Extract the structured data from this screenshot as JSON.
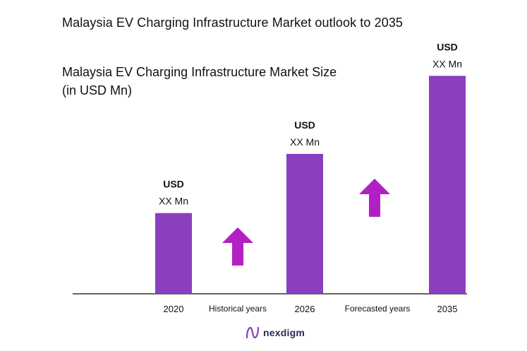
{
  "title": "Malaysia EV Charging Infrastructure Market outlook to 2035",
  "subtitle_line1": "Malaysia EV Charging Infrastructure Market Size",
  "subtitle_line2": "(in USD Mn)",
  "colors": {
    "bar": "#8a3fbe",
    "arrow": "#b21fc4",
    "axis": "#333333",
    "brand": "#2b2b55"
  },
  "chart_data": {
    "type": "bar",
    "title": "Malaysia EV Charging Infrastructure Market Size",
    "categories": [
      "2020",
      "2026",
      "2035"
    ],
    "values": [
      30,
      52,
      81
    ],
    "ylim": [
      0,
      100
    ],
    "xlabel": "",
    "ylabel": "",
    "data_labels": [
      {
        "unit": "USD",
        "value": "XX Mn"
      },
      {
        "unit": "USD",
        "value": "XX Mn"
      },
      {
        "unit": "USD",
        "value": "XX Mn"
      }
    ],
    "period_labels": [
      "Historical years",
      "Forecasted years"
    ],
    "growth_arrows": 2,
    "grid": false,
    "legend": "none"
  },
  "brand": {
    "name": "nexdigm",
    "icon": "nexdigm-logo-icon"
  }
}
